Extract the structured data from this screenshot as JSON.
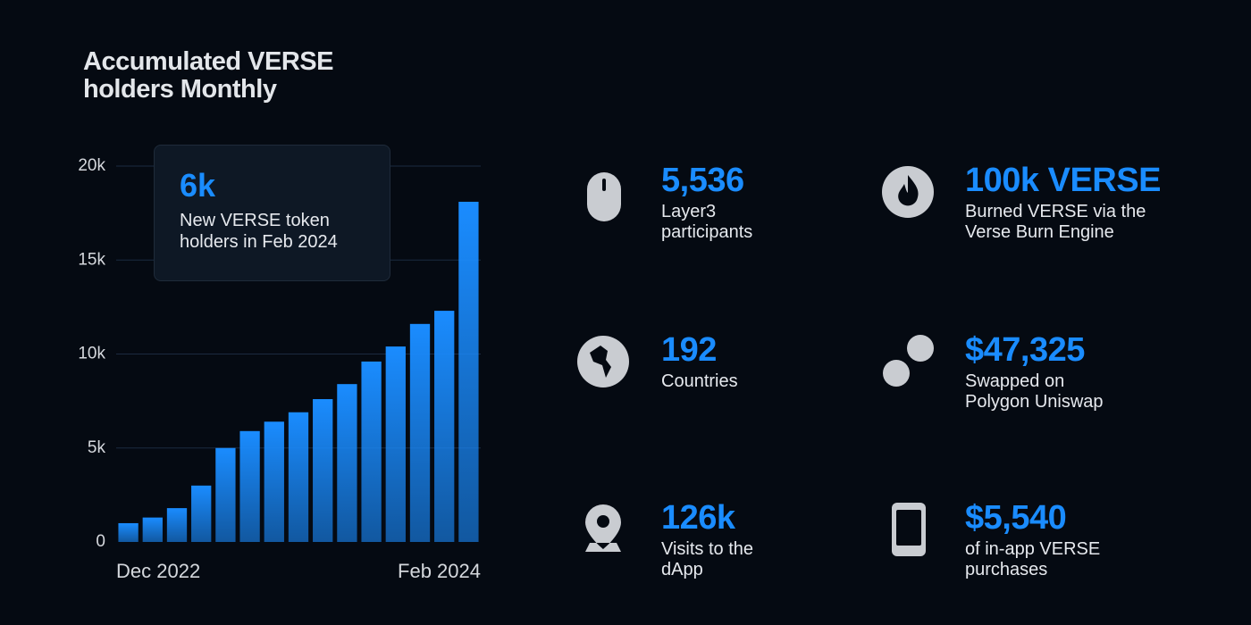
{
  "chart_data": {
    "type": "bar",
    "title": "Accumulated VERSE holders Monthly",
    "categories": [
      "Dec 2022",
      null,
      null,
      null,
      null,
      null,
      null,
      null,
      null,
      null,
      null,
      null,
      null,
      null,
      "Feb 2024"
    ],
    "values": [
      1000,
      1300,
      1800,
      3000,
      5000,
      5900,
      6400,
      6900,
      7600,
      8400,
      9600,
      10400,
      11600,
      12300,
      18100
    ],
    "color": "#1a8cff",
    "ylim": [
      0,
      20000
    ],
    "yticks": [
      0,
      {
        "value": 5000,
        "label": "5k"
      },
      {
        "value": 10000,
        "label": "10k"
      },
      {
        "value": 15000,
        "label": "15k"
      },
      {
        "value": 20000,
        "label": "20k"
      }
    ],
    "grid": true,
    "annotation": {
      "value": "6k",
      "text": "New VERSE token holders in Feb 2024"
    }
  },
  "stats": [
    {
      "value": "5,536",
      "label": [
        "Layer3",
        "participants"
      ]
    },
    {
      "value": "100k VERSE",
      "label": [
        "Burned VERSE via the",
        "Verse Burn Engine"
      ]
    },
    {
      "value": "192",
      "label": [
        "Countries"
      ]
    },
    {
      "value": "$47,325",
      "label": [
        "Swapped on",
        "Polygon Uniswap"
      ]
    },
    {
      "value": "126k",
      "label": [
        "Visits to the",
        "dApp"
      ]
    },
    {
      "value": "$5,540",
      "label": [
        "of in-app VERSE",
        "purchases"
      ]
    }
  ]
}
